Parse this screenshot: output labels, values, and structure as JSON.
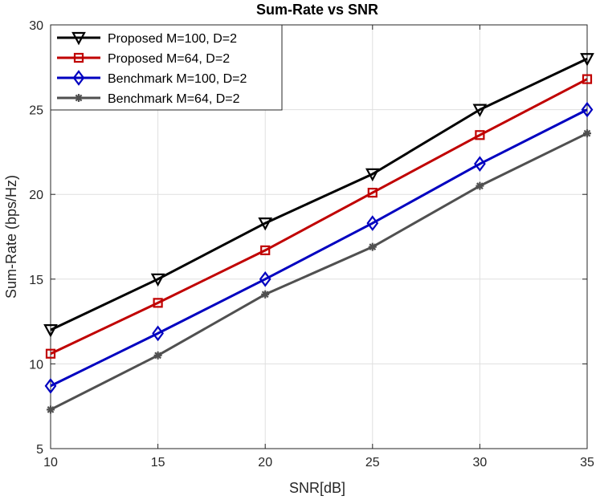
{
  "chart_data": {
    "type": "line",
    "title": "Sum-Rate vs SNR",
    "xlabel": "SNR[dB]",
    "ylabel": "Sum-Rate (bps/Hz)",
    "x": [
      10,
      15,
      20,
      25,
      30,
      35
    ],
    "xlim": [
      10,
      35
    ],
    "ylim": [
      5,
      30
    ],
    "xticks": [
      10,
      15,
      20,
      25,
      30,
      35
    ],
    "yticks": [
      5,
      10,
      15,
      20,
      25,
      30
    ],
    "grid": true,
    "legend_position": "top-left",
    "series": [
      {
        "name": "Proposed M=100, D=2",
        "color": "#000000",
        "marker": "triangle-down",
        "values": [
          12.0,
          15.0,
          18.3,
          21.2,
          25.0,
          28.0
        ]
      },
      {
        "name": "Proposed M=64, D=2",
        "color": "#c00000",
        "marker": "square",
        "values": [
          10.6,
          13.6,
          16.7,
          20.1,
          23.5,
          26.8
        ]
      },
      {
        "name": "Benchmark M=100, D=2",
        "color": "#0000c0",
        "marker": "diamond",
        "values": [
          8.7,
          11.8,
          15.0,
          18.3,
          21.8,
          25.0
        ]
      },
      {
        "name": "Benchmark M=64, D=2",
        "color": "#505050",
        "marker": "asterisk",
        "values": [
          7.3,
          10.5,
          14.1,
          16.9,
          20.5,
          23.6
        ]
      }
    ]
  }
}
